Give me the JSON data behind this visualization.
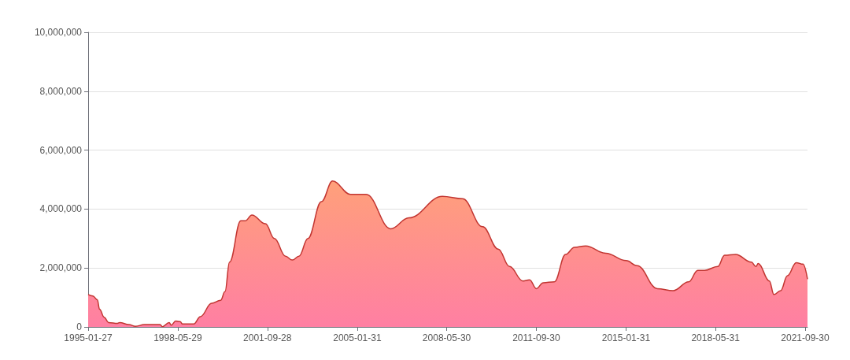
{
  "chart_data": {
    "type": "area",
    "x": [
      "1995-01-27",
      "1995-04",
      "1995-06",
      "1995-07",
      "1995-09",
      "1995-11",
      "1996-03",
      "1996-04",
      "1996-08",
      "1996-11",
      "1997-03",
      "1997-10",
      "1997-11",
      "1998-02",
      "1998-03",
      "1998-05",
      "1998-07",
      "1998-08",
      "1999-01",
      "1999-04",
      "1999-09",
      "2000-01",
      "2000-03",
      "2000-05",
      "2000-10",
      "2000-12",
      "2001-03",
      "2001-09",
      "2002-01",
      "2002-06",
      "2002-09",
      "2002-12",
      "2003-04",
      "2003-10",
      "2004-03",
      "2004-11",
      "2005-06",
      "2006-05",
      "2007-01",
      "2008-04",
      "2009-01",
      "2009-10",
      "2010-05",
      "2010-10",
      "2011-04",
      "2011-07",
      "2011-10",
      "2012-01",
      "2012-06",
      "2012-11",
      "2013-03",
      "2013-08",
      "2014-05",
      "2015-02",
      "2015-07",
      "2016-04",
      "2016-11",
      "2017-06",
      "2017-10",
      "2018-01",
      "2018-07",
      "2018-10",
      "2019-03",
      "2019-10",
      "2019-12",
      "2020-01",
      "2020-06",
      "2020-08",
      "2020-11",
      "2021-02",
      "2021-06",
      "2021-09",
      "2021-11"
    ],
    "series": [
      {
        "color": "#c23531",
        "values": [
          1100000,
          1050000,
          920000,
          600000,
          330000,
          150000,
          120000,
          150000,
          80000,
          20000,
          80000,
          80000,
          10000,
          150000,
          60000,
          200000,
          180000,
          100000,
          100000,
          350000,
          800000,
          900000,
          1200000,
          2200000,
          3600000,
          3600000,
          3800000,
          3500000,
          3000000,
          2400000,
          2270000,
          2400000,
          3000000,
          4250000,
          4950000,
          4500000,
          4500000,
          3330000,
          3700000,
          4430000,
          4350000,
          3400000,
          2640000,
          2050000,
          1560000,
          1600000,
          1300000,
          1500000,
          1530000,
          2460000,
          2700000,
          2750000,
          2500000,
          2250000,
          2080000,
          1300000,
          1230000,
          1530000,
          1920000,
          1920000,
          2050000,
          2430000,
          2460000,
          2200000,
          2050000,
          2150000,
          1560000,
          1100000,
          1230000,
          1740000,
          2180000,
          2130000,
          1620000
        ]
      }
    ],
    "xlim": [
      "1995-01-27",
      "2021-11"
    ],
    "xticks": [
      "1995-01-27",
      "1998-05-29",
      "2001-09-28",
      "2005-01-31",
      "2008-05-30",
      "2011-09-30",
      "2015-01-31",
      "2018-05-31",
      "2021-09-30"
    ],
    "ylim": [
      0,
      10000000
    ],
    "yticks": [
      0,
      {
        "value": 2000000,
        "label": "2,000,000"
      },
      {
        "value": 4000000,
        "label": "4,000,000"
      },
      {
        "value": 6000000,
        "label": "6,000,000"
      },
      {
        "value": 8000000,
        "label": "8,000,000"
      },
      {
        "value": 10000000,
        "label": "10,000,000"
      }
    ],
    "grid": "y",
    "marker": "none",
    "line_style": "solid"
  }
}
